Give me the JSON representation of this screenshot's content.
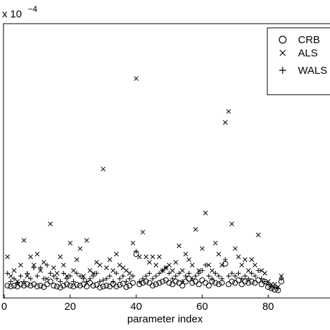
{
  "chart_data": {
    "type": "scatter",
    "title": "",
    "xlabel": "parameter index",
    "ylabel": "",
    "y_multiplier": "x 10",
    "y_exponent": "−4",
    "xlim": [
      0,
      100
    ],
    "ylim": [
      0,
      10
    ],
    "x_ticks": [
      0,
      20,
      40,
      60,
      80
    ],
    "x_tick_labels": [
      "0",
      "20",
      "40",
      "60",
      "80"
    ],
    "legend": {
      "placement": "top-right",
      "entries": [
        "CRB",
        "ALS",
        "WALS"
      ]
    },
    "grid": false,
    "series": [
      {
        "name": "CRB",
        "marker": "circle",
        "x": [
          1,
          2,
          3,
          4,
          5,
          6,
          7,
          8,
          9,
          10,
          11,
          12,
          13,
          14,
          15,
          16,
          17,
          18,
          19,
          20,
          21,
          22,
          23,
          24,
          25,
          26,
          27,
          28,
          29,
          30,
          31,
          32,
          33,
          34,
          35,
          36,
          37,
          38,
          39,
          40,
          41,
          42,
          43,
          44,
          45,
          46,
          47,
          48,
          49,
          50,
          51,
          52,
          53,
          54,
          55,
          56,
          57,
          58,
          59,
          60,
          61,
          62,
          63,
          64,
          65,
          66,
          67,
          68,
          69,
          70,
          71,
          72,
          73,
          74,
          75,
          76,
          77,
          78,
          79,
          80,
          81,
          82,
          83,
          84
        ],
        "y": [
          0.45,
          0.42,
          0.45,
          0.42,
          0.5,
          0.45,
          0.5,
          0.45,
          0.5,
          0.42,
          0.45,
          0.4,
          0.5,
          0.6,
          0.45,
          0.42,
          0.38,
          0.45,
          0.5,
          0.45,
          0.42,
          0.48,
          0.45,
          0.5,
          0.42,
          0.55,
          0.45,
          0.48,
          0.38,
          0.42,
          0.45,
          0.42,
          0.5,
          0.42,
          0.48,
          0.52,
          0.4,
          0.45,
          0.55,
          1.6,
          0.5,
          0.55,
          0.6,
          0.55,
          0.45,
          0.5,
          0.55,
          0.6,
          0.65,
          0.55,
          0.5,
          0.6,
          0.55,
          0.45,
          0.6,
          0.7,
          0.55,
          0.6,
          0.5,
          0.65,
          0.55,
          0.45,
          0.6,
          0.55,
          0.5,
          0.55,
          1.25,
          0.5,
          0.6,
          0.55,
          0.65,
          0.5,
          0.6,
          0.55,
          0.6,
          0.55,
          0.65,
          0.5,
          0.6,
          0.4,
          0.35,
          0.3,
          0.28,
          0.6
        ]
      },
      {
        "name": "ALS",
        "marker": "x",
        "x": [
          1,
          2,
          3,
          4,
          5,
          6,
          7,
          8,
          9,
          10,
          11,
          12,
          13,
          14,
          15,
          16,
          17,
          18,
          19,
          20,
          21,
          22,
          23,
          24,
          25,
          26,
          27,
          28,
          29,
          30,
          31,
          32,
          33,
          34,
          35,
          36,
          37,
          38,
          39,
          40,
          41,
          42,
          43,
          44,
          45,
          46,
          47,
          48,
          49,
          50,
          51,
          52,
          53,
          54,
          55,
          56,
          57,
          58,
          59,
          60,
          61,
          62,
          63,
          64,
          65,
          66,
          67,
          68,
          69,
          70,
          71,
          72,
          73,
          74,
          75,
          76,
          77,
          78,
          79,
          80,
          81,
          82,
          83,
          84
        ],
        "y": [
          1.5,
          0.8,
          1.0,
          0.6,
          1.2,
          2.1,
          0.8,
          1.5,
          1.2,
          1.6,
          1.0,
          1.3,
          0.7,
          2.7,
          1.1,
          0.9,
          1.5,
          1.2,
          0.8,
          2.0,
          1.0,
          1.4,
          1.8,
          0.8,
          2.1,
          1.0,
          0.9,
          1.3,
          1.2,
          4.7,
          1.1,
          1.4,
          1.0,
          1.6,
          1.2,
          1.1,
          1.0,
          0.9,
          2.0,
          8.0,
          1.5,
          2.4,
          1.5,
          1.3,
          1.5,
          1.2,
          1.5,
          1.0,
          1.1,
          1.2,
          1.0,
          1.3,
          1.9,
          1.0,
          1.6,
          1.4,
          1.2,
          2.5,
          1.0,
          1.8,
          3.1,
          1.2,
          1.0,
          2.0,
          1.6,
          1.2,
          6.4,
          6.8,
          2.7,
          1.8,
          1.5,
          1.2,
          1.4,
          1.0,
          1.4,
          1.2,
          2.3,
          1.0,
          0.9,
          0.6,
          0.5,
          0.5,
          0.4,
          0.8
        ]
      },
      {
        "name": "WALS",
        "marker": "plus",
        "x": [
          1,
          2,
          3,
          4,
          5,
          6,
          7,
          8,
          9,
          10,
          11,
          12,
          13,
          14,
          15,
          16,
          17,
          18,
          19,
          20,
          21,
          22,
          23,
          24,
          25,
          26,
          27,
          28,
          29,
          30,
          31,
          32,
          33,
          34,
          35,
          36,
          37,
          38,
          39,
          40,
          41,
          42,
          43,
          44,
          45,
          46,
          47,
          48,
          49,
          50,
          51,
          52,
          53,
          54,
          55,
          56,
          57,
          58,
          59,
          60,
          61,
          62,
          63,
          64,
          65,
          66,
          67,
          68,
          69,
          70,
          71,
          72,
          73,
          74,
          75,
          76,
          77,
          78,
          79,
          80,
          81,
          82,
          83,
          84
        ],
        "y": [
          0.9,
          0.6,
          0.7,
          0.55,
          0.8,
          0.6,
          0.9,
          0.7,
          1.1,
          0.8,
          1.1,
          0.7,
          1.2,
          0.9,
          0.8,
          0.7,
          0.6,
          0.9,
          0.7,
          0.8,
          0.6,
          0.9,
          0.8,
          0.7,
          0.6,
          0.7,
          0.8,
          0.9,
          0.6,
          0.65,
          0.7,
          0.8,
          0.6,
          0.9,
          0.7,
          0.8,
          0.6,
          0.7,
          0.8,
          1.7,
          0.6,
          0.7,
          0.8,
          0.9,
          0.7,
          0.8,
          0.9,
          1.0,
          1.1,
          0.9,
          0.7,
          0.8,
          0.9,
          0.6,
          0.8,
          0.9,
          0.7,
          0.8,
          0.9,
          1.0,
          1.2,
          0.8,
          0.7,
          0.9,
          0.8,
          0.7,
          1.4,
          0.8,
          0.9,
          0.8,
          0.9,
          0.7,
          0.8,
          0.7,
          0.9,
          0.8,
          1.0,
          0.7,
          0.6,
          0.5,
          0.4,
          0.4,
          0.35,
          0.7
        ]
      }
    ]
  }
}
